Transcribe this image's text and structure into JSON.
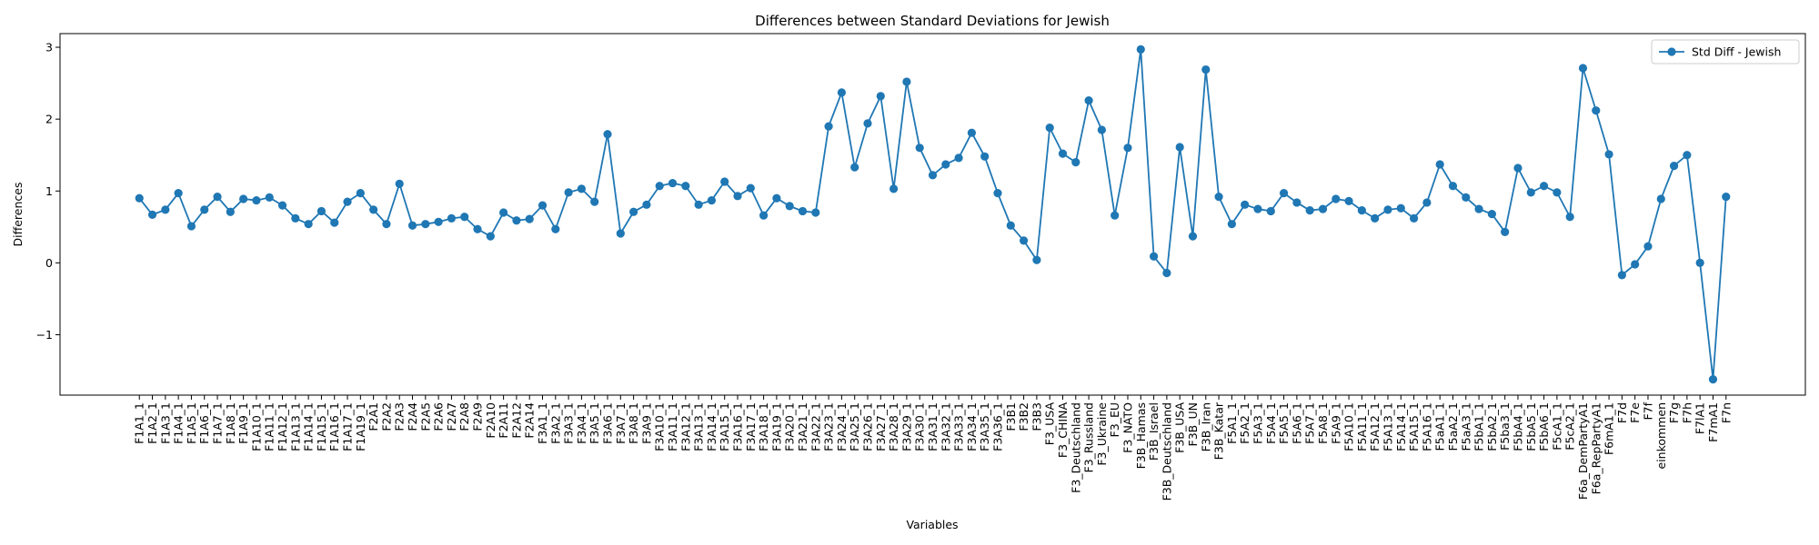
{
  "chart_data": {
    "type": "line",
    "title": "Differences between Standard Deviations for Jewish",
    "xlabel": "Variables",
    "ylabel": "Differences",
    "legend": "upper right",
    "grid": false,
    "categories": [
      "F1A1_1",
      "F1A2_1",
      "F1A3_1",
      "F1A4_1",
      "F1A5_1",
      "F1A6_1",
      "F1A7_1",
      "F1A8_1",
      "F1A9_1",
      "F1A10_1",
      "F1A11_1",
      "F1A12_1",
      "F1A13_1",
      "F1A14_1",
      "F1A15_1",
      "F1A16_1",
      "F1A17_1",
      "F1A19_1",
      "F2A1",
      "F2A2",
      "F2A3",
      "F2A4",
      "F2A5",
      "F2A6",
      "F2A7",
      "F2A8",
      "F2A9",
      "F2A10",
      "F2A11",
      "F2A12",
      "F2A14",
      "F3A1_1",
      "F3A2_1",
      "F3A3_1",
      "F3A4_1",
      "F3A5_1",
      "F3A6_1",
      "F3A7_1",
      "F3A8_1",
      "F3A9_1",
      "F3A10_1",
      "F3A11_1",
      "F3A12_1",
      "F3A13_1",
      "F3A14_1",
      "F3A15_1",
      "F3A16_1",
      "F3A17_1",
      "F3A18_1",
      "F3A19_1",
      "F3A20_1",
      "F3A21_1",
      "F3A22_1",
      "F3A23_1",
      "F3A24_1",
      "F3A25_1",
      "F3A26_1",
      "F3A27_1",
      "F3A28_1",
      "F3A29_1",
      "F3A30_1",
      "F3A31_1",
      "F3A32_1",
      "F3A33_1",
      "F3A34_1",
      "F3A35_1",
      "F3A36_1",
      "F3B1",
      "F3B2",
      "F3B3",
      "F3_USA",
      "F3_CHINA",
      "F3_Deutschland",
      "F3_Russland",
      "F3_Ukraine",
      "F3_EU",
      "F3_NATO",
      "F3B_Hamas",
      "F3B_Israel",
      "F3B_Deutschland",
      "F3B_USA",
      "F3B_UN",
      "F3B_Iran",
      "F3B_Katar",
      "F5A1_1",
      "F5A2_1",
      "F5A3_1",
      "F5A4_1",
      "F5A5_1",
      "F5A6_1",
      "F5A7_1",
      "F5A8_1",
      "F5A9_1",
      "F5A10_1",
      "F5A11_1",
      "F5A12_1",
      "F5A13_1",
      "F5A14_1",
      "F5A15_1",
      "F5A16_1",
      "F5aA1_1",
      "F5aA2_1",
      "F5aA3_1",
      "F5bA1_1",
      "F5bA2_1",
      "F5ba3_1",
      "F5bA4_1",
      "F5bA5_1",
      "F5bA6_1",
      "F5cA1_1",
      "F5cA2_1",
      "F6a_DemPartyA1",
      "F6a_RepPartyA1",
      "F6mA1_1",
      "F7d",
      "F7e",
      "F7f",
      "einkommen",
      "F7g",
      "F7h",
      "F7lA1",
      "F7mA1",
      "F7n"
    ],
    "series": [
      {
        "name": "Std Diff - Jewish",
        "color": "#1f77b4",
        "values": [
          0.9,
          0.67,
          0.74,
          0.97,
          0.51,
          0.74,
          0.92,
          0.71,
          0.89,
          0.87,
          0.91,
          0.8,
          0.62,
          0.54,
          0.72,
          0.56,
          0.85,
          0.97,
          0.74,
          0.54,
          1.1,
          0.52,
          0.54,
          0.57,
          0.62,
          0.64,
          0.47,
          0.37,
          0.7,
          0.59,
          0.61,
          0.8,
          0.47,
          0.98,
          1.03,
          0.85,
          1.79,
          0.41,
          0.71,
          0.81,
          1.07,
          1.11,
          1.07,
          0.81,
          0.87,
          1.13,
          0.93,
          1.04,
          0.66,
          0.9,
          0.79,
          0.72,
          0.7,
          1.9,
          2.37,
          1.33,
          1.94,
          2.32,
          1.03,
          2.52,
          1.6,
          1.22,
          1.37,
          1.46,
          1.81,
          1.48,
          0.97,
          0.52,
          0.31,
          0.04,
          1.88,
          1.52,
          1.4,
          2.26,
          1.85,
          0.66,
          1.6,
          2.97,
          0.09,
          -0.14,
          1.61,
          0.37,
          2.69,
          0.92,
          0.54,
          0.81,
          0.75,
          0.72,
          0.97,
          0.84,
          0.73,
          0.75,
          0.89,
          0.86,
          0.73,
          0.62,
          0.74,
          0.76,
          0.62,
          0.84,
          1.37,
          1.07,
          0.91,
          0.75,
          0.68,
          0.43,
          1.32,
          0.98,
          1.07,
          0.98,
          0.64,
          2.71,
          2.12,
          1.51,
          -0.17,
          -0.02,
          0.23,
          0.89,
          1.35,
          1.5,
          0.0,
          -1.62,
          0.92
        ]
      }
    ],
    "ylim": [
      -1.84,
      3.19
    ],
    "yticks": [
      {
        "value": -1,
        "label": "−1"
      },
      0,
      1,
      2,
      3
    ]
  }
}
